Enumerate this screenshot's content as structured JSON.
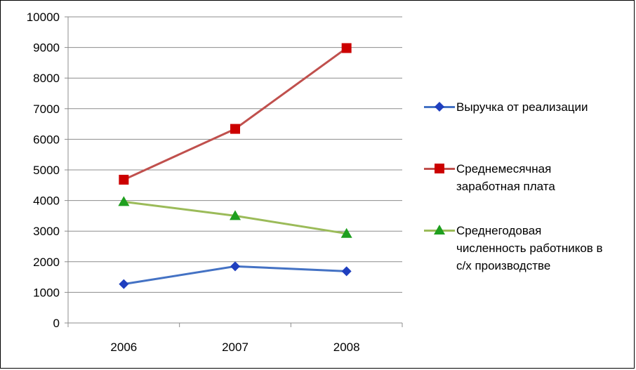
{
  "chart_data": {
    "type": "line",
    "categories": [
      "2006",
      "2007",
      "2008"
    ],
    "ylim": [
      0,
      10000
    ],
    "yticks": [
      0,
      1000,
      2000,
      3000,
      4000,
      5000,
      6000,
      7000,
      8000,
      9000,
      10000
    ],
    "grid": true,
    "legend_position": "right",
    "series": [
      {
        "name": "Выручка от реализации",
        "values": [
          1270,
          1850,
          1690
        ],
        "color": "#4472C4",
        "marker": "diamond",
        "marker_color": "#1F3FBF"
      },
      {
        "name": "Среднемесячная\nзаработная плата",
        "values": [
          4680,
          6340,
          8980
        ],
        "color": "#C0504D",
        "marker": "square",
        "marker_color": "#CC0000"
      },
      {
        "name": "Среднегодовая\nчисленность работников в\nс/х производстве",
        "values": [
          3960,
          3500,
          2920
        ],
        "color": "#9BBB59",
        "marker": "triangle",
        "marker_color": "#1F9F1F"
      }
    ]
  }
}
